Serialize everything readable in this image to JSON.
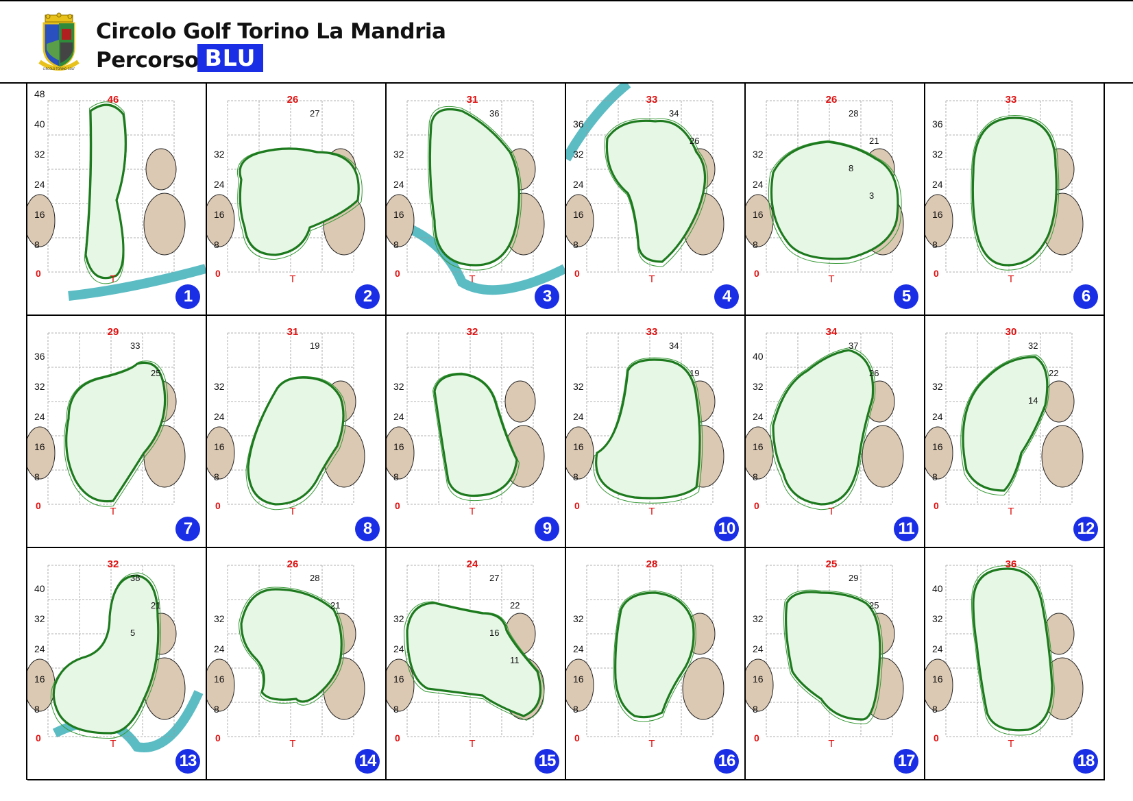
{
  "header": {
    "title": "Circolo Golf Torino La Mandria",
    "subtitle": "Percorso",
    "course_badge": "BLU",
    "logo_icon": "club-crest-icon",
    "logo_text": "CIRCOLO TORINO GOLF"
  },
  "colors": {
    "badge_blue": "#1a2ee6",
    "green_outline": "#1e7a1e",
    "green_fill": "#e6f7e6",
    "bunker": "#dcc9b3",
    "water": "#5bbcc4",
    "front_marker": "#e01010"
  },
  "holes": [
    {
      "number": "1",
      "depth": "46",
      "y_labels": [
        "48",
        "40",
        "32",
        "24",
        "16",
        "8"
      ],
      "extra_labels": [],
      "zero": "0"
    },
    {
      "number": "2",
      "depth": "26",
      "y_labels": [
        "32",
        "24",
        "16",
        "8"
      ],
      "extra_labels": [
        "27"
      ],
      "zero": "0"
    },
    {
      "number": "3",
      "depth": "31",
      "y_labels": [
        "32",
        "24",
        "16",
        "8"
      ],
      "extra_labels": [
        "36"
      ],
      "zero": "0"
    },
    {
      "number": "4",
      "depth": "33",
      "y_labels": [
        "36",
        "32",
        "24",
        "16",
        "8"
      ],
      "extra_labels": [
        "34",
        "26"
      ],
      "zero": "0"
    },
    {
      "number": "5",
      "depth": "26",
      "y_labels": [
        "32",
        "24",
        "16",
        "8"
      ],
      "extra_labels": [
        "28",
        "21",
        "8",
        "3"
      ],
      "zero": "0"
    },
    {
      "number": "6",
      "depth": "33",
      "y_labels": [
        "36",
        "32",
        "24",
        "16",
        "8"
      ],
      "extra_labels": [],
      "zero": "0"
    },
    {
      "number": "7",
      "depth": "29",
      "y_labels": [
        "36",
        "32",
        "24",
        "16",
        "8"
      ],
      "extra_labels": [
        "33",
        "25"
      ],
      "zero": "0"
    },
    {
      "number": "8",
      "depth": "31",
      "y_labels": [
        "32",
        "24",
        "16",
        "8"
      ],
      "extra_labels": [
        "19"
      ],
      "zero": "0"
    },
    {
      "number": "9",
      "depth": "32",
      "y_labels": [
        "32",
        "24",
        "16",
        "8"
      ],
      "extra_labels": [],
      "zero": "0"
    },
    {
      "number": "10",
      "depth": "33",
      "y_labels": [
        "32",
        "24",
        "16",
        "8"
      ],
      "extra_labels": [
        "34",
        "19"
      ],
      "zero": "0"
    },
    {
      "number": "11",
      "depth": "34",
      "y_labels": [
        "40",
        "32",
        "24",
        "16",
        "8"
      ],
      "extra_labels": [
        "37",
        "26"
      ],
      "zero": "0"
    },
    {
      "number": "12",
      "depth": "30",
      "y_labels": [
        "32",
        "24",
        "16",
        "8"
      ],
      "extra_labels": [
        "32",
        "22",
        "14"
      ],
      "zero": "0"
    },
    {
      "number": "13",
      "depth": "32",
      "y_labels": [
        "40",
        "32",
        "24",
        "16",
        "8"
      ],
      "extra_labels": [
        "38",
        "21",
        "5"
      ],
      "zero": "0"
    },
    {
      "number": "14",
      "depth": "26",
      "y_labels": [
        "32",
        "24",
        "16",
        "8"
      ],
      "extra_labels": [
        "28",
        "21"
      ],
      "zero": "0"
    },
    {
      "number": "15",
      "depth": "24",
      "y_labels": [
        "32",
        "24",
        "16",
        "8"
      ],
      "extra_labels": [
        "27",
        "22",
        "16",
        "11"
      ],
      "zero": "0"
    },
    {
      "number": "16",
      "depth": "28",
      "y_labels": [
        "32",
        "24",
        "16",
        "8"
      ],
      "extra_labels": [],
      "zero": "0"
    },
    {
      "number": "17",
      "depth": "25",
      "y_labels": [
        "32",
        "24",
        "16",
        "8"
      ],
      "extra_labels": [
        "29",
        "25"
      ],
      "zero": "0"
    },
    {
      "number": "18",
      "depth": "36",
      "y_labels": [
        "40",
        "32",
        "24",
        "16",
        "8"
      ],
      "extra_labels": [],
      "zero": "0"
    }
  ]
}
